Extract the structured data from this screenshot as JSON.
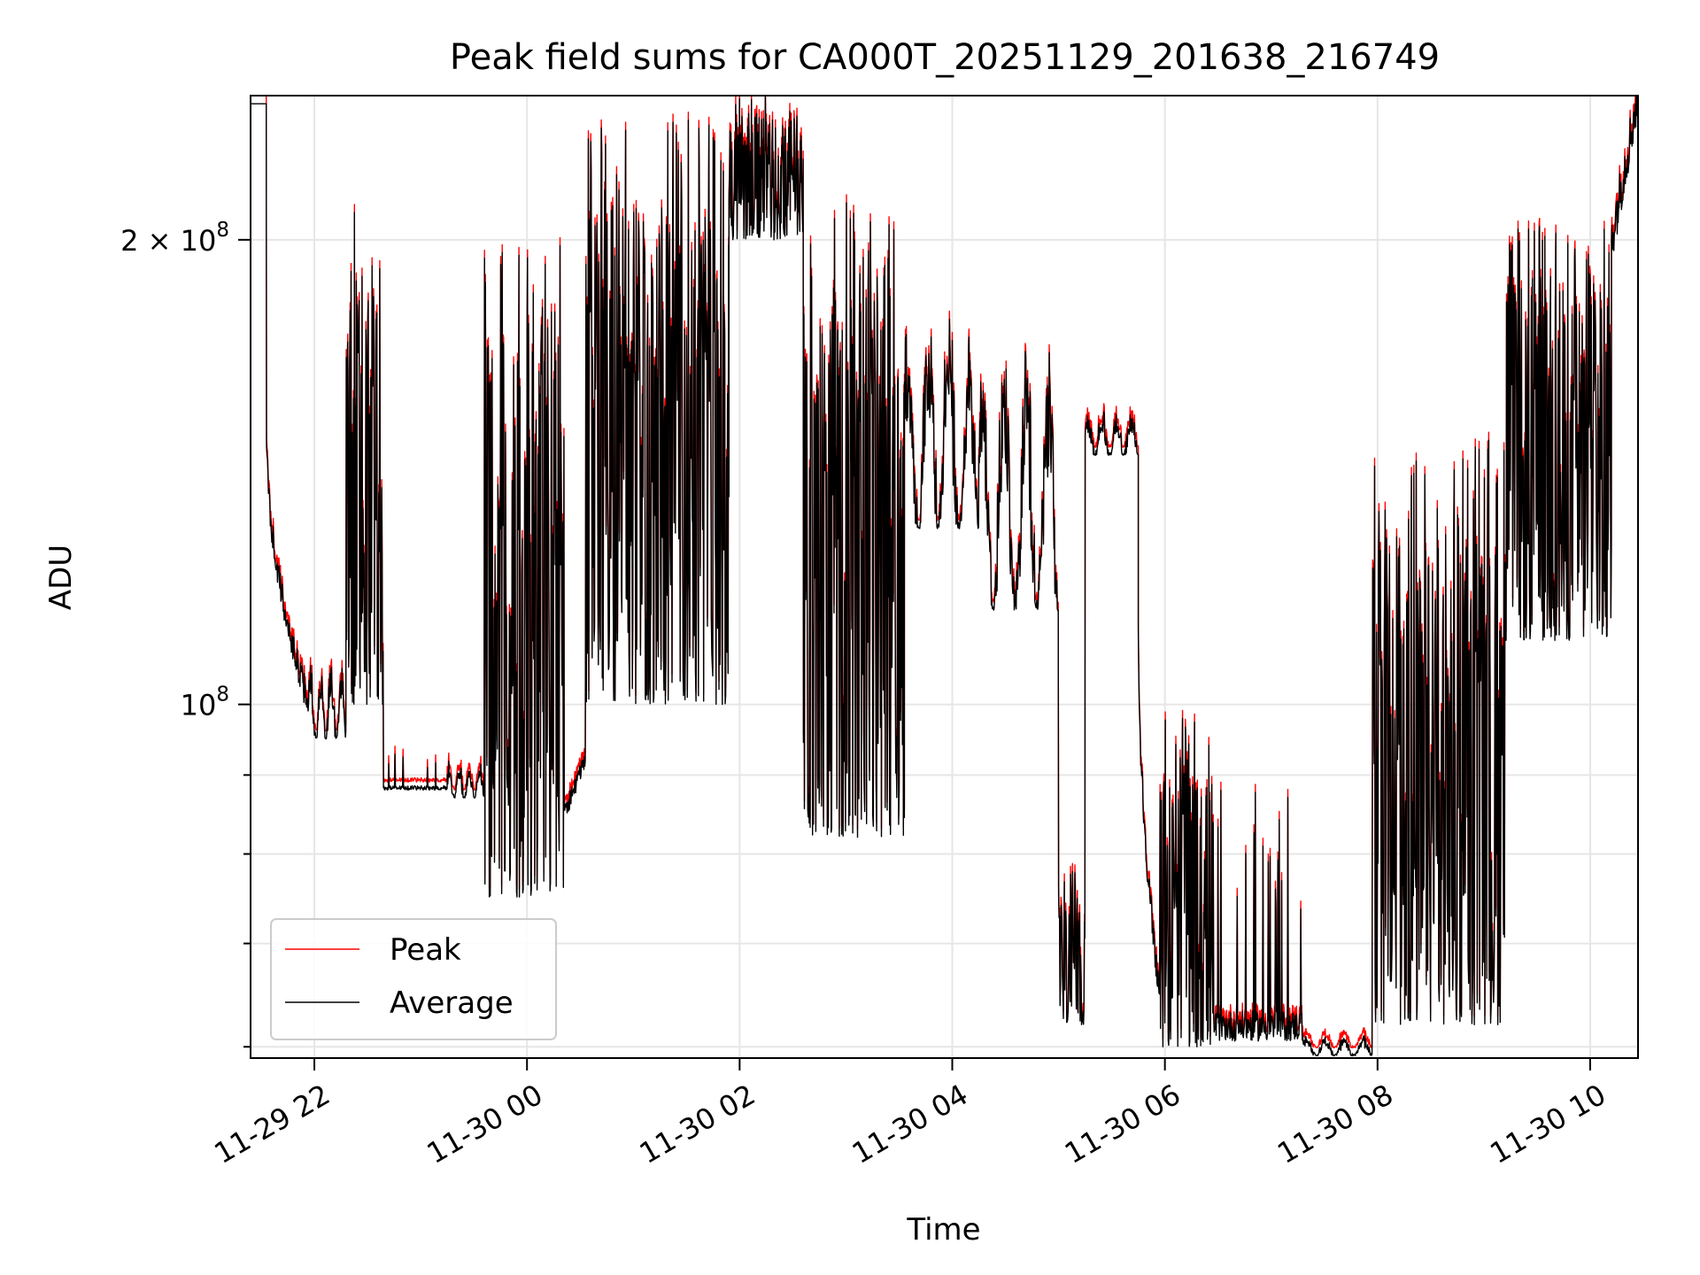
{
  "chart_data": {
    "type": "line",
    "title": "Peak field sums for CA000T_20251129_201638_216749",
    "xlabel": "Time",
    "ylabel": "ADU",
    "y_scale": "log",
    "ylim": [
      59000000,
      248000000
    ],
    "x_range_hours": [
      -2.6,
      10.45
    ],
    "x_ticks": [
      {
        "hour": -2,
        "label": "11-29 22"
      },
      {
        "hour": 0,
        "label": "11-30 00"
      },
      {
        "hour": 2,
        "label": "11-30 02"
      },
      {
        "hour": 4,
        "label": "11-30 04"
      },
      {
        "hour": 6,
        "label": "11-30 06"
      },
      {
        "hour": 8,
        "label": "11-30 08"
      },
      {
        "hour": 10,
        "label": "11-30 10"
      }
    ],
    "y_major_ticks": [
      {
        "value": 100000000,
        "base": "10",
        "exponent": "8"
      },
      {
        "value": 200000000,
        "base": "2 × 10",
        "exponent": "8"
      }
    ],
    "y_minor_ticks": [
      60000000,
      70000000,
      80000000,
      90000000
    ],
    "grid": true,
    "legend_position": "lower-left",
    "peak_ratio": 1.012,
    "series": [
      {
        "name": "Peak",
        "color": "#ff0000"
      },
      {
        "name": "Average",
        "color": "#000000"
      }
    ],
    "segments": [
      {
        "t0": -3.6,
        "t1": -2.45,
        "lo": 245000000,
        "hi": 245000000,
        "mode": "flat"
      },
      {
        "t0": -2.45,
        "t1": -2.05,
        "lo": 100000000,
        "hi": 150000000,
        "mode": "descend"
      },
      {
        "t0": -2.05,
        "t1": -1.7,
        "lo": 95000000,
        "hi": 106000000,
        "mode": "noisy"
      },
      {
        "t0": -1.7,
        "t1": -1.35,
        "lo": 100000000,
        "hi": 215000000,
        "mode": "spiky"
      },
      {
        "t0": -1.35,
        "t1": -0.75,
        "lo": 88000000,
        "hi": 93000000,
        "mode": "spikes"
      },
      {
        "t0": -0.75,
        "t1": -0.4,
        "lo": 87000000,
        "hi": 92000000,
        "mode": "noisy"
      },
      {
        "t0": -0.4,
        "t1": 0.35,
        "lo": 75000000,
        "hi": 205000000,
        "mode": "spiky"
      },
      {
        "t0": 0.35,
        "t1": 0.55,
        "lo": 85000000,
        "hi": 92000000,
        "mode": "ascend"
      },
      {
        "t0": 0.55,
        "t1": 1.9,
        "lo": 100000000,
        "hi": 240000000,
        "mode": "spiky"
      },
      {
        "t0": 1.9,
        "t1": 2.6,
        "lo": 200000000,
        "hi": 248000000,
        "mode": "spiky"
      },
      {
        "t0": 2.6,
        "t1": 3.55,
        "lo": 82000000,
        "hi": 215000000,
        "mode": "spiky"
      },
      {
        "t0": 3.55,
        "t1": 4.25,
        "lo": 130000000,
        "hi": 180000000,
        "mode": "noisy"
      },
      {
        "t0": 4.25,
        "t1": 5.0,
        "lo": 115000000,
        "hi": 170000000,
        "mode": "noisy"
      },
      {
        "t0": 5.0,
        "t1": 5.25,
        "lo": 62000000,
        "hi": 78000000,
        "mode": "spiky"
      },
      {
        "t0": 5.25,
        "t1": 5.75,
        "lo": 145000000,
        "hi": 155000000,
        "mode": "noisy"
      },
      {
        "t0": 5.75,
        "t1": 5.95,
        "lo": 65000000,
        "hi": 112000000,
        "mode": "descend"
      },
      {
        "t0": 5.95,
        "t1": 6.45,
        "lo": 60000000,
        "hi": 98000000,
        "mode": "spiky"
      },
      {
        "t0": 6.45,
        "t1": 7.3,
        "lo": 60500000,
        "hi": 88000000,
        "mode": "spikes"
      },
      {
        "t0": 7.3,
        "t1": 7.95,
        "lo": 59200000,
        "hi": 61000000,
        "mode": "noisy"
      },
      {
        "t0": 7.95,
        "t1": 8.6,
        "lo": 62000000,
        "hi": 145000000,
        "mode": "spiky"
      },
      {
        "t0": 8.6,
        "t1": 9.2,
        "lo": 62000000,
        "hi": 150000000,
        "mode": "spiky"
      },
      {
        "t0": 9.2,
        "t1": 10.2,
        "lo": 110000000,
        "hi": 205000000,
        "mode": "spiky"
      },
      {
        "t0": 10.2,
        "t1": 10.45,
        "lo": 200000000,
        "hi": 248000000,
        "mode": "ascend"
      }
    ]
  }
}
